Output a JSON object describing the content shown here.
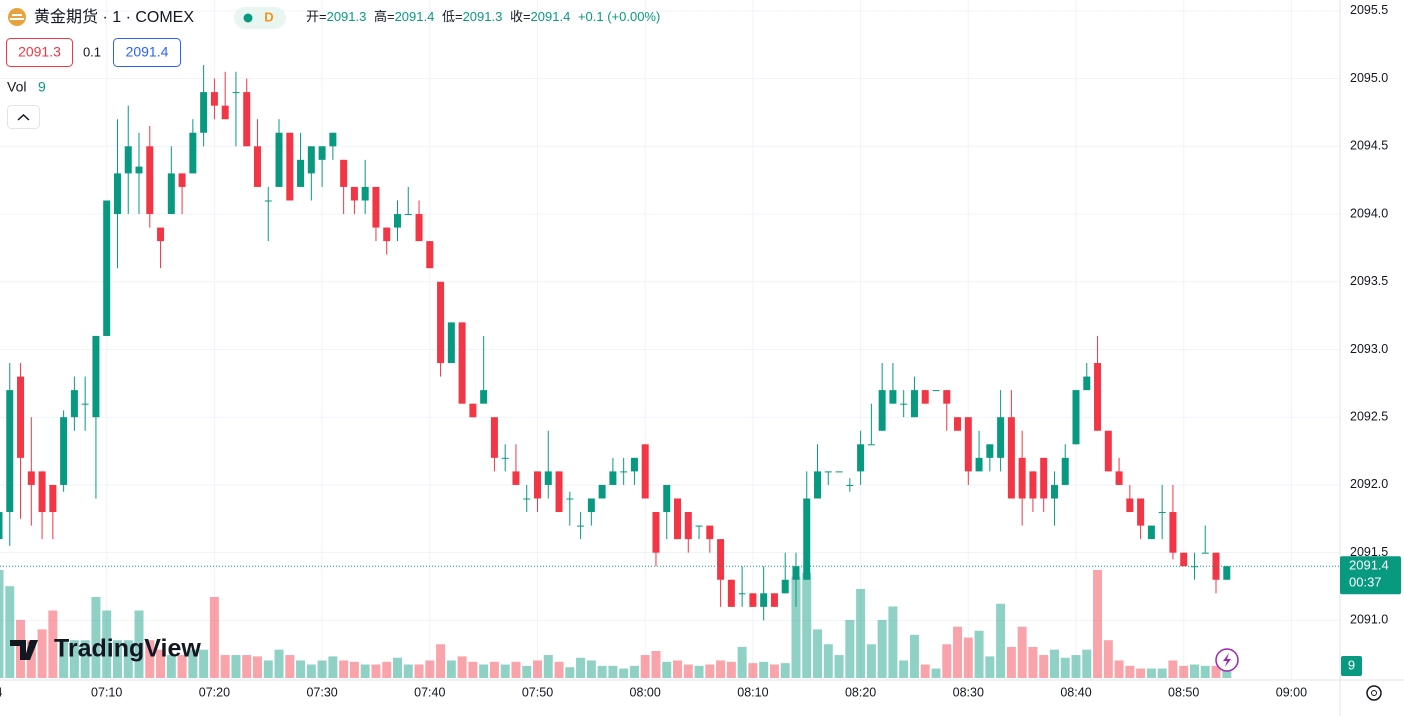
{
  "header": {
    "symbol": "黄金期货 · 1 · COMEX",
    "interval_badge": "D",
    "open_label": "开=",
    "high_label": "高=",
    "low_label": "低=",
    "close_label": "收=",
    "change": "+0.1 (+0.00%)",
    "bid": 2091.3,
    "spread": 0.1,
    "ask": 2091.4,
    "vol_label": "Vol",
    "countdown": "00:37",
    "logo": "TradingView"
  },
  "chart_data": {
    "type": "candlestick",
    "x": [
      "07:00",
      "07:01",
      "07:02",
      "07:03",
      "07:04",
      "07:05",
      "07:06",
      "07:07",
      "07:08",
      "07:09",
      "07:10",
      "07:11",
      "07:12",
      "07:13",
      "07:14",
      "07:15",
      "07:16",
      "07:17",
      "07:18",
      "07:19",
      "07:20",
      "07:21",
      "07:22",
      "07:23",
      "07:24",
      "07:25",
      "07:26",
      "07:27",
      "07:28",
      "07:29",
      "07:30",
      "07:31",
      "07:32",
      "07:33",
      "07:34",
      "07:35",
      "07:36",
      "07:37",
      "07:38",
      "07:39",
      "07:40",
      "07:41",
      "07:42",
      "07:43",
      "07:44",
      "07:45",
      "07:46",
      "07:47",
      "07:48",
      "07:49",
      "07:50",
      "07:51",
      "07:52",
      "07:53",
      "07:54",
      "07:55",
      "07:56",
      "07:57",
      "07:58",
      "07:59",
      "08:00",
      "08:01",
      "08:02",
      "08:03",
      "08:04",
      "08:05",
      "08:06",
      "08:07",
      "08:08",
      "08:09",
      "08:10",
      "08:11",
      "08:12",
      "08:13",
      "08:14",
      "08:15",
      "08:16",
      "08:17",
      "08:18",
      "08:19",
      "08:20",
      "08:21",
      "08:22",
      "08:23",
      "08:24",
      "08:25",
      "08:26",
      "08:27",
      "08:28",
      "08:29",
      "08:30",
      "08:31",
      "08:32",
      "08:33",
      "08:34",
      "08:35",
      "08:36",
      "08:37",
      "08:38",
      "08:39",
      "08:40",
      "08:41",
      "08:42",
      "08:43",
      "08:44",
      "08:45",
      "08:46",
      "08:47",
      "08:48",
      "08:49",
      "08:50",
      "08:51",
      "08:52",
      "08:53",
      "08:54"
    ],
    "open": [
      2091.6,
      2091.8,
      2092.8,
      2092.1,
      2092.1,
      2092.0,
      2092.0,
      2092.5,
      2092.6,
      2092.5,
      2093.1,
      2094.0,
      2094.3,
      2094.3,
      2094.5,
      2093.9,
      2094.0,
      2094.3,
      2094.3,
      2094.6,
      2094.9,
      2094.8,
      2094.9,
      2094.9,
      2094.5,
      2094.1,
      2094.2,
      2094.6,
      2094.2,
      2094.3,
      2094.4,
      2094.5,
      2094.4,
      2094.2,
      2094.1,
      2094.2,
      2093.9,
      2093.9,
      2094.0,
      2094.0,
      2093.8,
      2093.5,
      2092.9,
      2093.2,
      2092.6,
      2092.6,
      2092.5,
      2092.2,
      2092.1,
      2091.9,
      2092.1,
      2092.0,
      2092.1,
      2091.9,
      2091.7,
      2091.8,
      2091.9,
      2092.0,
      2092.1,
      2092.1,
      2092.3,
      2091.8,
      2091.8,
      2091.9,
      2091.8,
      2091.7,
      2091.7,
      2091.6,
      2091.3,
      2091.2,
      2091.2,
      2091.1,
      2091.2,
      2091.2,
      2091.3,
      2091.3,
      2091.9,
      2092.1,
      2092.1,
      2092.0,
      2092.1,
      2092.3,
      2092.4,
      2092.6,
      2092.6,
      2092.5,
      2092.7,
      2092.7,
      2092.7,
      2092.5,
      2092.5,
      2092.1,
      2092.2,
      2092.2,
      2092.5,
      2092.2,
      2092.1,
      2092.2,
      2091.9,
      2092.0,
      2092.3,
      2092.7,
      2092.9,
      2092.4,
      2092.1,
      2091.9,
      2091.9,
      2091.6,
      2091.8,
      2091.8,
      2091.5,
      2091.4,
      2091.5,
      2091.5,
      2091.3
    ],
    "high": [
      2091.9,
      2092.9,
      2092.9,
      2092.5,
      2092.1,
      2092.0,
      2092.55,
      2092.8,
      2092.8,
      2093.1,
      2094.1,
      2094.7,
      2094.8,
      2094.6,
      2094.65,
      2093.9,
      2094.5,
      2094.3,
      2094.7,
      2095.1,
      2095.0,
      2095.05,
      2095.05,
      2095.0,
      2094.7,
      2094.2,
      2094.7,
      2094.6,
      2094.6,
      2094.5,
      2094.5,
      2094.6,
      2094.4,
      2094.2,
      2094.4,
      2094.2,
      2093.9,
      2094.1,
      2094.2,
      2094.1,
      2093.8,
      2093.5,
      2093.2,
      2093.2,
      2092.6,
      2093.1,
      2092.5,
      2092.3,
      2092.3,
      2092.0,
      2092.1,
      2092.4,
      2092.1,
      2091.95,
      2091.8,
      2091.9,
      2092.0,
      2092.2,
      2092.2,
      2092.2,
      2092.3,
      2091.8,
      2092.0,
      2091.9,
      2091.8,
      2091.7,
      2091.7,
      2091.6,
      2091.3,
      2091.4,
      2091.2,
      2091.4,
      2091.2,
      2091.5,
      2091.5,
      2092.1,
      2092.3,
      2092.1,
      2092.1,
      2092.05,
      2092.4,
      2092.6,
      2092.9,
      2092.9,
      2092.7,
      2092.8,
      2092.7,
      2092.7,
      2092.7,
      2092.5,
      2092.5,
      2092.4,
      2092.3,
      2092.7,
      2092.7,
      2092.4,
      2092.1,
      2092.2,
      2092.1,
      2092.3,
      2092.7,
      2092.9,
      2093.1,
      2092.4,
      2092.2,
      2092.0,
      2091.9,
      2091.7,
      2092.0,
      2092.0,
      2091.5,
      2091.5,
      2091.7,
      2091.5,
      2091.4
    ],
    "low": [
      2091.4,
      2091.55,
      2091.75,
      2091.7,
      2091.6,
      2091.6,
      2091.95,
      2092.4,
      2092.4,
      2091.9,
      2093.1,
      2093.6,
      2094.0,
      2094.0,
      2093.9,
      2093.6,
      2094.0,
      2094.0,
      2094.3,
      2094.5,
      2094.7,
      2094.7,
      2094.5,
      2094.5,
      2094.2,
      2093.8,
      2094.2,
      2094.1,
      2094.2,
      2094.1,
      2094.2,
      2094.4,
      2094.0,
      2094.0,
      2094.0,
      2093.8,
      2093.7,
      2093.8,
      2094.0,
      2093.8,
      2093.6,
      2092.8,
      2092.9,
      2092.6,
      2092.5,
      2092.6,
      2092.1,
      2092.1,
      2092.0,
      2091.8,
      2091.8,
      2091.9,
      2091.8,
      2091.7,
      2091.6,
      2091.7,
      2091.9,
      2092.0,
      2092.0,
      2092.0,
      2091.9,
      2091.4,
      2091.6,
      2091.6,
      2091.5,
      2091.6,
      2091.5,
      2091.1,
      2091.1,
      2091.1,
      2091.1,
      2091.0,
      2091.1,
      2091.2,
      2091.1,
      2091.3,
      2091.9,
      2092.0,
      2092.1,
      2091.95,
      2092.0,
      2092.3,
      2092.4,
      2092.6,
      2092.5,
      2092.5,
      2092.6,
      2092.7,
      2092.4,
      2092.4,
      2092.0,
      2092.1,
      2092.1,
      2092.1,
      2091.9,
      2091.7,
      2091.8,
      2091.8,
      2091.7,
      2092.0,
      2092.3,
      2092.7,
      2092.4,
      2092.1,
      2092.0,
      2091.8,
      2091.6,
      2091.6,
      2091.6,
      2091.45,
      2091.4,
      2091.3,
      2091.5,
      2091.2,
      2091.3
    ],
    "close": [
      2091.8,
      2092.7,
      2092.2,
      2092.0,
      2091.8,
      2091.8,
      2092.5,
      2092.7,
      2092.6,
      2093.1,
      2094.1,
      2094.3,
      2094.5,
      2094.35,
      2094.0,
      2093.8,
      2094.3,
      2094.2,
      2094.6,
      2094.9,
      2094.8,
      2094.7,
      2094.9,
      2094.5,
      2094.2,
      2094.1,
      2094.6,
      2094.1,
      2094.4,
      2094.5,
      2094.5,
      2094.6,
      2094.2,
      2094.1,
      2094.2,
      2093.9,
      2093.8,
      2094.0,
      2094.0,
      2093.8,
      2093.6,
      2092.9,
      2093.2,
      2092.6,
      2092.5,
      2092.7,
      2092.2,
      2092.2,
      2092.0,
      2091.9,
      2091.9,
      2092.1,
      2091.8,
      2091.9,
      2091.7,
      2091.9,
      2092.0,
      2092.1,
      2092.1,
      2092.2,
      2091.9,
      2091.5,
      2092.0,
      2091.6,
      2091.6,
      2091.7,
      2091.6,
      2091.3,
      2091.1,
      2091.2,
      2091.1,
      2091.2,
      2091.1,
      2091.3,
      2091.4,
      2091.9,
      2092.1,
      2092.1,
      2092.1,
      2092.0,
      2092.3,
      2092.3,
      2092.7,
      2092.7,
      2092.6,
      2092.7,
      2092.6,
      2092.7,
      2092.6,
      2092.4,
      2092.1,
      2092.2,
      2092.3,
      2092.5,
      2091.9,
      2091.9,
      2091.9,
      2091.9,
      2092.0,
      2092.2,
      2092.7,
      2092.8,
      2092.4,
      2092.1,
      2092.0,
      2091.8,
      2091.7,
      2091.7,
      2091.8,
      2091.5,
      2091.4,
      2091.4,
      2091.5,
      2091.3,
      2091.4
    ],
    "volume": [
      80,
      68,
      43,
      28,
      36,
      50,
      28,
      28,
      28,
      60,
      50,
      28,
      28,
      50,
      28,
      21,
      17,
      17,
      21,
      21,
      60,
      17,
      17,
      17,
      16,
      13,
      21,
      17,
      13,
      10,
      13,
      16,
      13,
      12,
      10,
      10,
      12,
      15,
      10,
      10,
      13,
      25,
      13,
      16,
      12,
      10,
      12,
      10,
      12,
      9,
      13,
      17,
      12,
      8,
      15,
      13,
      9,
      9,
      7,
      9,
      17,
      20,
      12,
      13,
      10,
      9,
      10,
      13,
      12,
      23,
      11,
      12,
      10,
      11,
      75,
      78,
      36,
      25,
      17,
      43,
      66,
      25,
      43,
      53,
      13,
      32,
      10,
      7,
      25,
      38,
      30,
      35,
      16,
      55,
      23,
      38,
      23,
      17,
      21,
      15,
      17,
      21,
      80,
      28,
      13,
      9,
      7,
      7,
      7,
      13,
      9,
      10,
      9,
      9,
      9
    ],
    "up_color": "#089981",
    "down_color": "#f23645",
    "volume_up_color": "rgba(8,153,129,0.45)",
    "volume_down_color": "rgba(242,54,69,0.45)",
    "ylim": [
      2090.56,
      2095.58
    ],
    "yticks": [
      2095.5,
      {
        "value": 2095,
        "label": "2095.0"
      },
      2094.5,
      {
        "value": 2094,
        "label": "2094.0"
      },
      2093.5,
      {
        "value": 2093,
        "label": "2093.0"
      },
      2092.5,
      {
        "value": 2092,
        "label": "2092.0"
      },
      2091.5,
      {
        "value": 2091,
        "label": "2091.0"
      }
    ],
    "xticks": [
      {
        "value": "07:00",
        "label": "4"
      },
      "07:10",
      "07:20",
      "07:30",
      "07:40",
      "07:50",
      "08:00",
      "08:10",
      "08:20",
      "08:30",
      "08:40",
      "08:50",
      "09:00"
    ],
    "grid": true
  }
}
